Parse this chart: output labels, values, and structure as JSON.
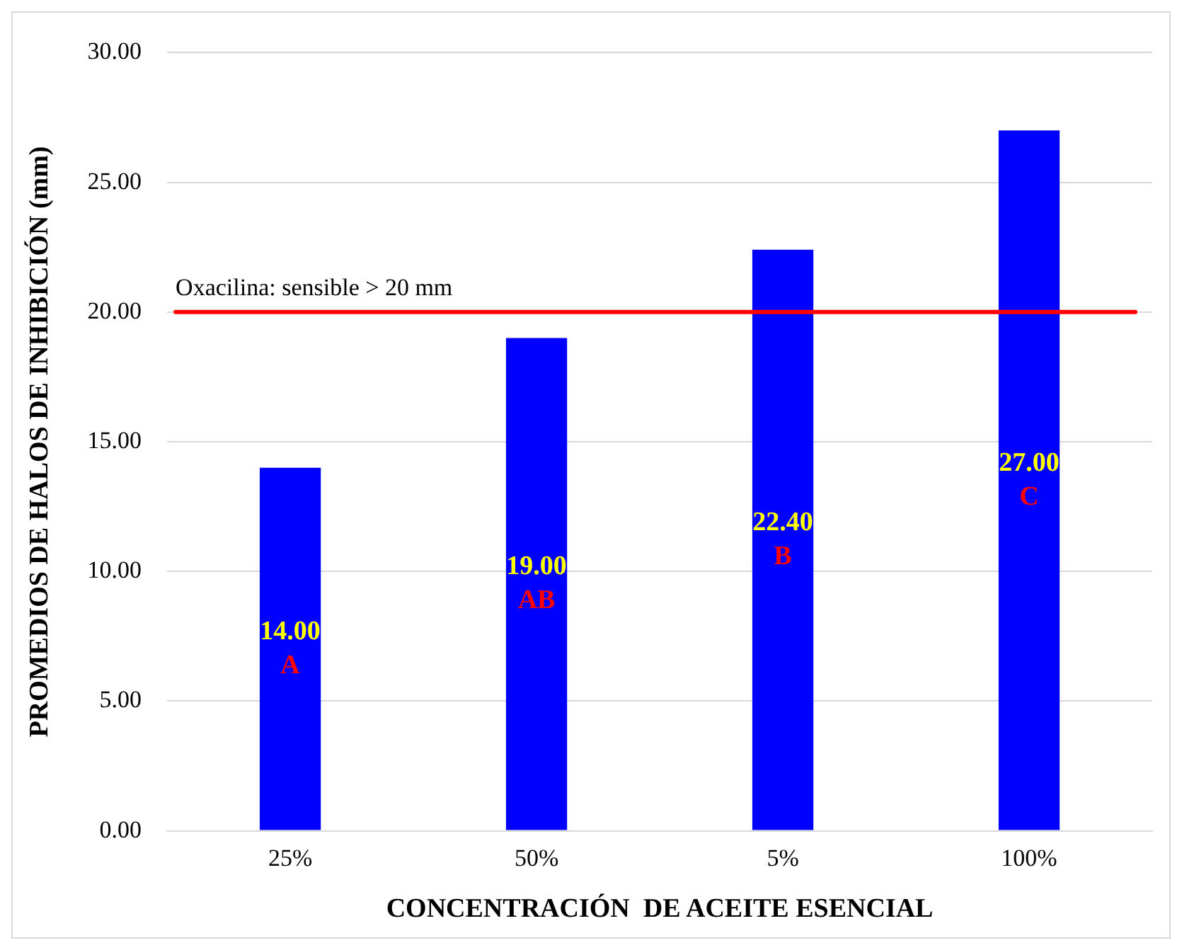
{
  "chart_data": {
    "type": "bar",
    "xlabel": "CONCENTRACIÓN  DE ACEITE ESENCIAL",
    "ylabel": "PROMEDIOS DE HALOS DE INHIBICIÓN (mm)",
    "categories": [
      "25%",
      "50%",
      "5%",
      "100%"
    ],
    "values": [
      14,
      19,
      22.4,
      27
    ],
    "color": "#0000ff",
    "value_labels": [
      "14.00",
      "19.00",
      "22.40",
      "27.00"
    ],
    "ylim": [
      0,
      30
    ],
    "yticks": [
      {
        "value": 0,
        "label": "0.00"
      },
      {
        "value": 5,
        "label": "5.00"
      },
      {
        "value": 10,
        "label": "10.00"
      },
      {
        "value": 15,
        "label": "15.00"
      },
      {
        "value": 20,
        "label": "20.00"
      },
      {
        "value": 25,
        "label": "25.00"
      },
      {
        "value": 30,
        "label": "30.00"
      }
    ],
    "grid": "y",
    "ref_lines": [
      {
        "axis": "y",
        "value": 20,
        "label": "Oxacilina: sensible > 20 mm",
        "color": "#ff0000"
      }
    ],
    "annotations": [
      "A",
      "AB",
      "B",
      "C"
    ]
  }
}
